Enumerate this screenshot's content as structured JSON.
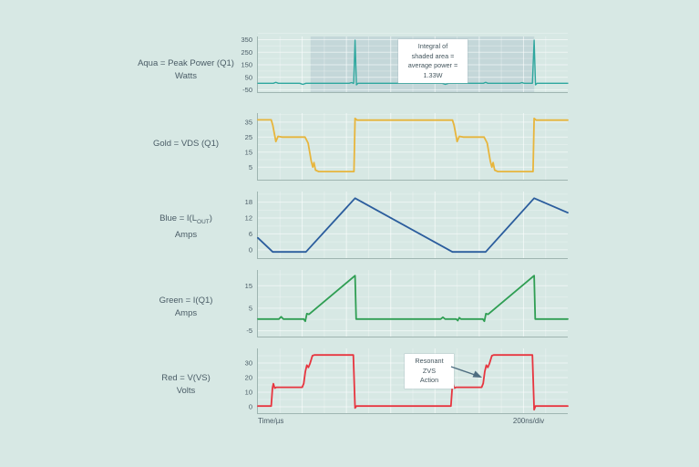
{
  "page": {
    "bg": "#d7e8e4",
    "text_color": "#4a5c66"
  },
  "x_axis": {
    "left_label": "Time/µs",
    "right_label": "200ns/div",
    "divisions_per_window": 14
  },
  "annotations": {
    "integral": {
      "lines": [
        "Integral of",
        "shaded area =",
        "average power =",
        "1.33W"
      ]
    },
    "zvs": {
      "lines": [
        "Resonant",
        "ZVS",
        "Action"
      ],
      "arrow_color": "#4e6d80"
    }
  },
  "chart_data": [
    {
      "type": "line",
      "name": "peak-power",
      "unit": "Watts",
      "color": "#2ea79e",
      "stroke_width": 1.4,
      "label_lines": [
        [
          {
            "t": "Aqua = Peak Power (Q1)"
          }
        ],
        [
          {
            "t": "Watts"
          }
        ]
      ],
      "ylim": [
        -75,
        375
      ],
      "yticks": [
        350,
        250,
        150,
        50,
        -50
      ],
      "shaded_region": {
        "x0": 0.17,
        "x1": 0.892,
        "color": "rgba(110,140,165,0.18)"
      },
      "points": [
        [
          0,
          3
        ],
        [
          0.05,
          3
        ],
        [
          0.058,
          10
        ],
        [
          0.066,
          3
        ],
        [
          0.135,
          3
        ],
        [
          0.145,
          -6
        ],
        [
          0.155,
          3
        ],
        [
          0.295,
          3
        ],
        [
          0.302,
          8
        ],
        [
          0.309,
          2
        ],
        [
          0.3135,
          345
        ],
        [
          0.318,
          -10
        ],
        [
          0.323,
          3
        ],
        [
          0.595,
          3
        ],
        [
          0.605,
          -6
        ],
        [
          0.615,
          3
        ],
        [
          0.728,
          3
        ],
        [
          0.735,
          10
        ],
        [
          0.742,
          3
        ],
        [
          0.845,
          3
        ],
        [
          0.852,
          8
        ],
        [
          0.859,
          3
        ],
        [
          0.886,
          3
        ],
        [
          0.8915,
          345
        ],
        [
          0.896,
          -10
        ],
        [
          0.901,
          3
        ],
        [
          1,
          3
        ]
      ]
    },
    {
      "type": "line",
      "name": "vds-q1",
      "unit": "Volts",
      "color": "#e7b53c",
      "stroke_width": 1.8,
      "label_lines": [
        [
          {
            "t": "Gold = VDS (Q1)"
          }
        ]
      ],
      "ylim": [
        -4,
        41
      ],
      "yticks": [
        35,
        25,
        15,
        5
      ],
      "points": [
        [
          0,
          36.5
        ],
        [
          0.043,
          36.5
        ],
        [
          0.048,
          33
        ],
        [
          0.058,
          22
        ],
        [
          0.065,
          25.5
        ],
        [
          0.078,
          25
        ],
        [
          0.152,
          25
        ],
        [
          0.162,
          21
        ],
        [
          0.172,
          9
        ],
        [
          0.177,
          5
        ],
        [
          0.181,
          8
        ],
        [
          0.186,
          3
        ],
        [
          0.196,
          2
        ],
        [
          0.31,
          2
        ],
        [
          0.3135,
          37.5
        ],
        [
          0.32,
          36.3
        ],
        [
          0.628,
          36.3
        ],
        [
          0.633,
          33
        ],
        [
          0.643,
          22
        ],
        [
          0.65,
          25.5
        ],
        [
          0.663,
          25
        ],
        [
          0.73,
          25
        ],
        [
          0.74,
          21
        ],
        [
          0.75,
          9
        ],
        [
          0.755,
          5
        ],
        [
          0.759,
          8
        ],
        [
          0.764,
          3
        ],
        [
          0.774,
          2
        ],
        [
          0.888,
          2
        ],
        [
          0.8915,
          37.5
        ],
        [
          0.898,
          36.3
        ],
        [
          1,
          36.3
        ]
      ]
    },
    {
      "type": "line",
      "name": "inductor-current",
      "unit": "Amps",
      "color": "#2b5d9d",
      "stroke_width": 1.8,
      "label_lines": [
        [
          {
            "t": "Blue = I(L"
          },
          {
            "t": "OUT",
            "sub": true
          },
          {
            "t": ")"
          }
        ],
        [
          {
            "t": "Amps"
          }
        ]
      ],
      "ylim": [
        -3.5,
        22
      ],
      "yticks": [
        18,
        12,
        6,
        0
      ],
      "points": [
        [
          0,
          4.5
        ],
        [
          0.048,
          -0.8
        ],
        [
          0.155,
          -0.8
        ],
        [
          0.3135,
          19.5
        ],
        [
          0.628,
          -0.8
        ],
        [
          0.735,
          -0.8
        ],
        [
          0.8915,
          19.5
        ],
        [
          1,
          14
        ]
      ]
    },
    {
      "type": "line",
      "name": "q1-current",
      "unit": "Amps",
      "color": "#2f9e53",
      "stroke_width": 1.8,
      "label_lines": [
        [
          {
            "t": "Green = I(Q1)"
          }
        ],
        [
          {
            "t": "Amps"
          }
        ]
      ],
      "ylim": [
        -8,
        22
      ],
      "yticks": [
        15,
        5,
        -5
      ],
      "points": [
        [
          0,
          0.2
        ],
        [
          0.068,
          0.2
        ],
        [
          0.075,
          1.2
        ],
        [
          0.082,
          0.2
        ],
        [
          0.148,
          0.2
        ],
        [
          0.153,
          -0.8
        ],
        [
          0.158,
          2.6
        ],
        [
          0.165,
          2.3
        ],
        [
          0.3135,
          19.5
        ],
        [
          0.317,
          0.2
        ],
        [
          0.59,
          0.2
        ],
        [
          0.597,
          1
        ],
        [
          0.604,
          0.2
        ],
        [
          0.64,
          0.2
        ],
        [
          0.645,
          -0.5
        ],
        [
          0.65,
          0.8
        ],
        [
          0.655,
          0.2
        ],
        [
          0.726,
          0.2
        ],
        [
          0.731,
          -0.8
        ],
        [
          0.736,
          2.6
        ],
        [
          0.743,
          2.3
        ],
        [
          0.8915,
          19.5
        ],
        [
          0.895,
          0.2
        ],
        [
          1,
          0.2
        ]
      ]
    },
    {
      "type": "line",
      "name": "vs-voltage",
      "unit": "Volts",
      "color": "#e7353f",
      "stroke_width": 1.8,
      "label_lines": [
        [
          {
            "t": "Red = V(VS)"
          }
        ],
        [
          {
            "t": "Volts"
          }
        ]
      ],
      "ylim": [
        -5,
        40
      ],
      "yticks": [
        30,
        20,
        10,
        0
      ],
      "points": [
        [
          0,
          0.5
        ],
        [
          0.043,
          0.5
        ],
        [
          0.047,
          13
        ],
        [
          0.05,
          15.8
        ],
        [
          0.054,
          12.8
        ],
        [
          0.06,
          13.4
        ],
        [
          0.143,
          13.4
        ],
        [
          0.148,
          16
        ],
        [
          0.153,
          24
        ],
        [
          0.158,
          28.5
        ],
        [
          0.163,
          27
        ],
        [
          0.168,
          29.5
        ],
        [
          0.176,
          35
        ],
        [
          0.182,
          35.5
        ],
        [
          0.308,
          35.5
        ],
        [
          0.3135,
          -0.8
        ],
        [
          0.318,
          0.5
        ],
        [
          0.623,
          0.5
        ],
        [
          0.627,
          13
        ],
        [
          0.63,
          15.8
        ],
        [
          0.634,
          12.8
        ],
        [
          0.64,
          13.4
        ],
        [
          0.722,
          13.4
        ],
        [
          0.727,
          16
        ],
        [
          0.732,
          24
        ],
        [
          0.737,
          28.5
        ],
        [
          0.742,
          27
        ],
        [
          0.747,
          29.5
        ],
        [
          0.755,
          35
        ],
        [
          0.761,
          35.5
        ],
        [
          0.886,
          35.5
        ],
        [
          0.8915,
          -2
        ],
        [
          0.896,
          0.5
        ],
        [
          1,
          0.5
        ]
      ]
    }
  ]
}
